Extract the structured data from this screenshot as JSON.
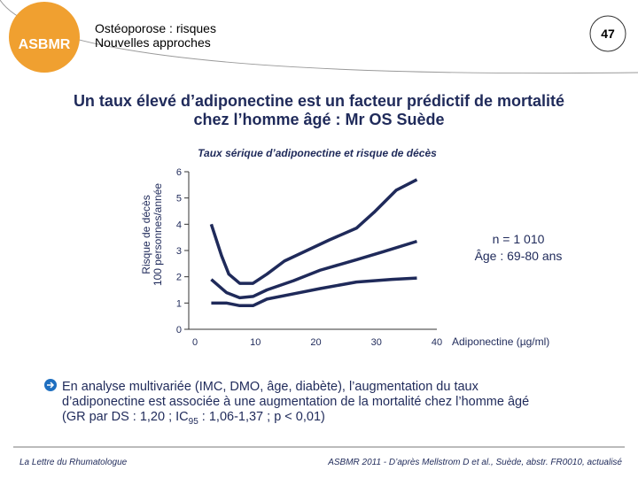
{
  "header": {
    "lines": [
      "Ostéoporose : risques",
      "Nouvelles approches"
    ],
    "slide_number": "47",
    "logo": "ASBMR"
  },
  "title": [
    "Un taux élevé d’adiponectine est un facteur prédictif de mortalité",
    "chez l’homme âgé : Mr OS Suède"
  ],
  "chart_data": {
    "type": "line",
    "title": "Taux sérique d’adiponectine et risque de décès",
    "y_label": [
      "Risque de décès",
      "100 personnes/année"
    ],
    "x_label": "Adiponectine (µg/ml)",
    "xlim": [
      0,
      40
    ],
    "xticks": [
      0,
      10,
      20,
      30,
      40
    ],
    "ylim": [
      0,
      6
    ],
    "yticks": [
      0,
      1,
      2,
      3,
      4,
      5,
      6
    ],
    "annotations": [
      "n = 1 010",
      "Âge :  69-80 ans"
    ],
    "series": [
      {
        "color": "#1f2a5a",
        "x": [
          2.7,
          4.4,
          5.6,
          7.4,
          9.6,
          11.9,
          14.8,
          18.5,
          22.2,
          26.7,
          29.6,
          33.3,
          36.7
        ],
        "values": [
          4.0,
          2.8,
          2.1,
          1.75,
          1.75,
          2.1,
          2.6,
          3.0,
          3.4,
          3.85,
          4.45,
          5.3,
          5.7
        ]
      },
      {
        "color": "#1f2a5a",
        "x": [
          2.7,
          5.2,
          7.4,
          9.6,
          11.9,
          16.3,
          20.7,
          26.7,
          31.1,
          36.7
        ],
        "values": [
          1.9,
          1.4,
          1.2,
          1.25,
          1.5,
          1.85,
          2.25,
          2.65,
          2.95,
          3.35
        ]
      },
      {
        "color": "#1f2a5a",
        "x": [
          2.7,
          5.2,
          7.4,
          9.6,
          11.9,
          16.3,
          20.7,
          26.7,
          32.6,
          36.7
        ],
        "values": [
          1.0,
          1.0,
          0.9,
          0.9,
          1.15,
          1.35,
          1.55,
          1.8,
          1.9,
          1.95
        ]
      }
    ]
  },
  "bullet": [
    "En analyse multivariée (IMC, DMO, âge, diabète), l’augmentation du taux",
    "d’adiponectine est associée à une augmentation de la mortalité chez l’homme âgé",
    [
      "(GR par DS : 1,20 ; IC",
      "95",
      " : 1,06-1,37 ; p < 0,01)"
    ]
  ],
  "footer": {
    "left": "La Lettre du Rhumatologue",
    "right": "ASBMR 2011 - D’après Mellstrom D et al., Suède, abstr. FR0010, actualisé"
  }
}
